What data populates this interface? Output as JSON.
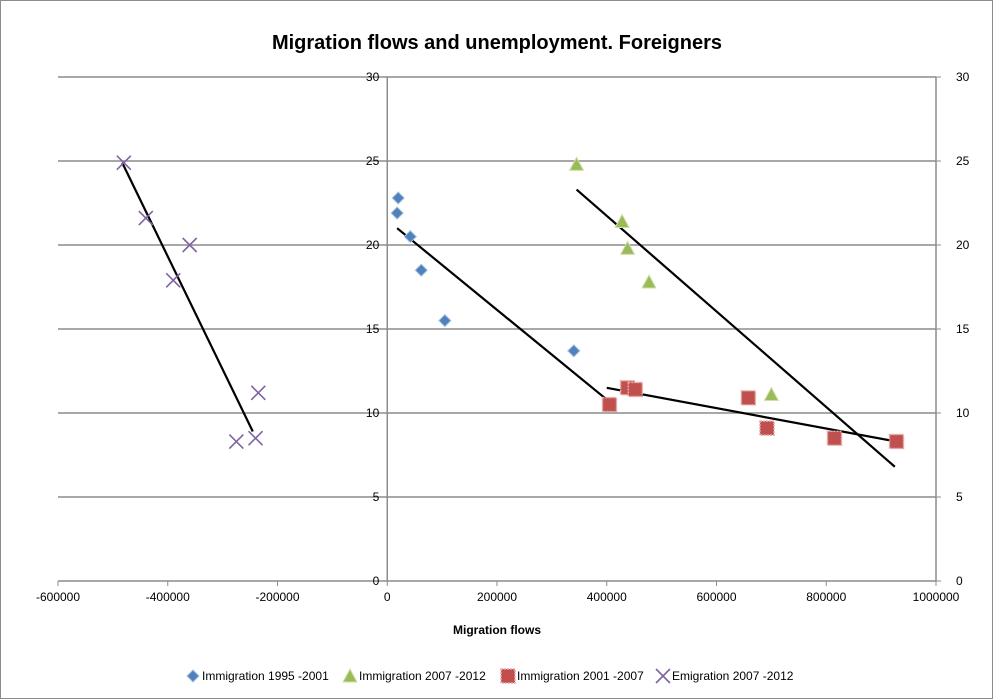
{
  "chart_data": {
    "type": "scatter",
    "title": "Migration flows and unemployment. Foreigners",
    "xlabel": "Migration flows",
    "ylabel": "",
    "xlim": [
      -600000,
      1000000
    ],
    "ylim": [
      0,
      30
    ],
    "x_ticks": [
      "-600000",
      "-400000",
      "-200000",
      "0",
      "200000",
      "400000",
      "600000",
      "800000",
      "1000000"
    ],
    "x_tick_values": [
      -600000,
      -400000,
      -200000,
      0,
      200000,
      400000,
      600000,
      800000,
      1000000
    ],
    "y_ticks": [
      "0",
      "5",
      "10",
      "15",
      "20",
      "25",
      "30"
    ],
    "y_tick_values": [
      0,
      5,
      10,
      15,
      20,
      25,
      30
    ],
    "grid": "horizontal",
    "legend_position": "bottom",
    "series": [
      {
        "name": "Immigration 1995   -2001",
        "marker": "diamond",
        "color": "#4f81bd",
        "points": [
          [
            20000,
            22.8
          ],
          [
            18000,
            21.9
          ],
          [
            42000,
            20.5
          ],
          [
            62000,
            18.5
          ],
          [
            105000,
            15.5
          ],
          [
            340000,
            13.7
          ]
        ],
        "trend": [
          [
            18000,
            21.0
          ],
          [
            400000,
            10.8
          ]
        ]
      },
      {
        "name": "Immigration 2007   -2012",
        "marker": "triangle",
        "color": "#9bbb59",
        "points": [
          [
            345000,
            24.8
          ],
          [
            428000,
            21.4
          ],
          [
            438000,
            19.8
          ],
          [
            477000,
            17.8
          ],
          [
            700000,
            11.1
          ]
        ],
        "trend": [
          [
            345000,
            23.3
          ],
          [
            925000,
            6.8
          ]
        ]
      },
      {
        "name": "Immigration 2001   -2007",
        "marker": "square",
        "color": "#c0504d",
        "points": [
          [
            405000,
            10.5
          ],
          [
            438000,
            11.5
          ],
          [
            452000,
            11.4
          ],
          [
            658000,
            10.9
          ],
          [
            692000,
            9.1
          ],
          [
            815000,
            8.5
          ],
          [
            928000,
            8.3
          ]
        ],
        "trend": [
          [
            400000,
            11.5
          ],
          [
            928000,
            8.3
          ]
        ]
      },
      {
        "name": "Emigration 2007   -2012",
        "marker": "x",
        "color": "#8064a2",
        "points": [
          [
            -480000,
            24.9
          ],
          [
            -440000,
            21.6
          ],
          [
            -360000,
            20.0
          ],
          [
            -390000,
            17.9
          ],
          [
            -235000,
            11.2
          ],
          [
            -275000,
            8.3
          ],
          [
            -240000,
            8.5
          ]
        ],
        "trend": [
          [
            -483000,
            24.9
          ],
          [
            -245000,
            8.9
          ]
        ]
      }
    ]
  }
}
